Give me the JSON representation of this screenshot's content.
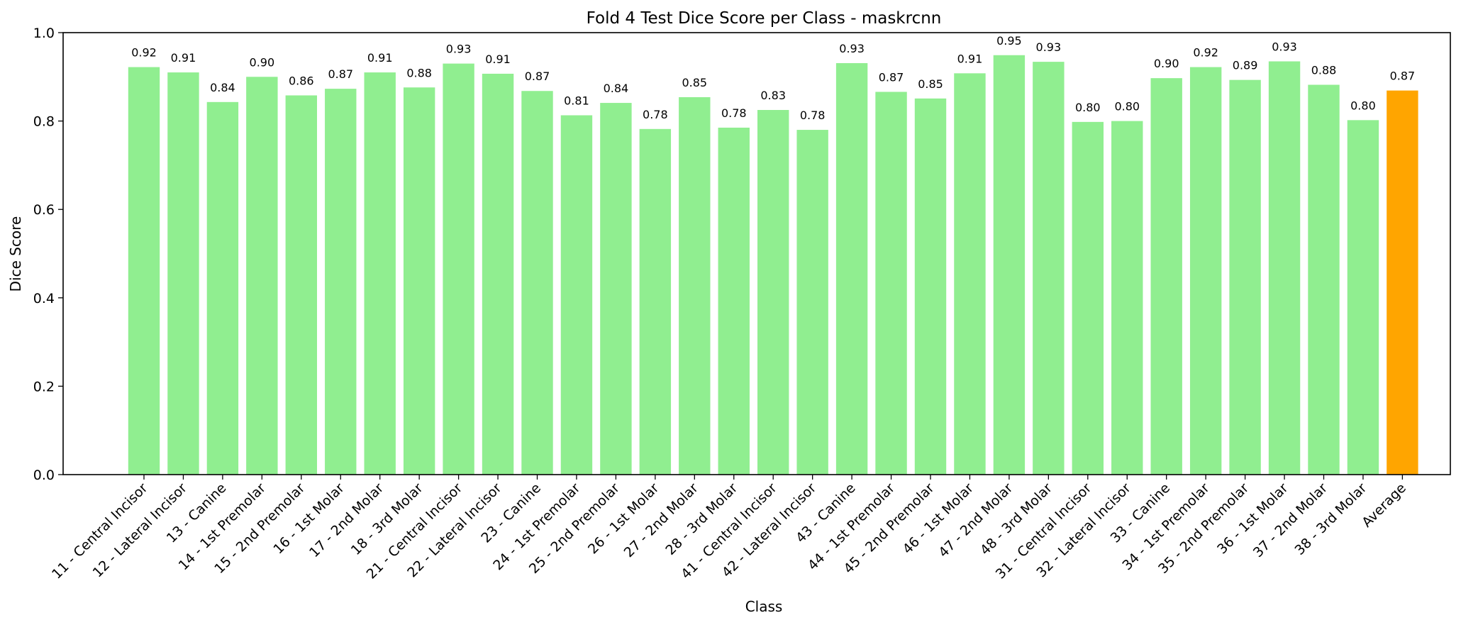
{
  "chart_data": {
    "type": "bar",
    "title": "Fold 4 Test Dice Score per Class - maskrcnn",
    "xlabel": "Class",
    "ylabel": "Dice Score",
    "ylim": [
      0,
      1.0
    ],
    "yticks": [
      "0.0",
      "0.2",
      "0.4",
      "0.6",
      "0.8",
      "1.0"
    ],
    "grid": false,
    "categories": [
      "11 - Central Incisor",
      "12 - Lateral Incisor",
      "13 - Canine",
      "14 - 1st Premolar",
      "15 - 2nd Premolar",
      "16 - 1st Molar",
      "17 - 2nd Molar",
      "18 - 3rd Molar",
      "21 - Central Incisor",
      "22 - Lateral Incisor",
      "23 - Canine",
      "24 - 1st Premolar",
      "25 - 2nd Premolar",
      "26 - 1st Molar",
      "27 - 2nd Molar",
      "28 - 3rd Molar",
      "41 - Central Incisor",
      "42 - Lateral Incisor",
      "43 - Canine",
      "44 - 1st Premolar",
      "45 - 2nd Premolar",
      "46 - 1st Molar",
      "47 - 2nd Molar",
      "48 - 3rd Molar",
      "31 - Central Incisor",
      "32 - Lateral Incisor",
      "33 - Canine",
      "34 - 1st Premolar",
      "35 - 2nd Premolar",
      "36 - 1st Molar",
      "37 - 2nd Molar",
      "38 - 3rd Molar",
      "Average"
    ],
    "values": [
      0.922,
      0.91,
      0.843,
      0.9,
      0.858,
      0.873,
      0.91,
      0.876,
      0.93,
      0.907,
      0.868,
      0.813,
      0.841,
      0.782,
      0.854,
      0.785,
      0.825,
      0.78,
      0.931,
      0.866,
      0.851,
      0.908,
      0.949,
      0.934,
      0.798,
      0.8,
      0.897,
      0.922,
      0.893,
      0.935,
      0.882,
      0.802,
      0.869
    ],
    "value_labels": [
      "0.92",
      "0.91",
      "0.84",
      "0.90",
      "0.86",
      "0.87",
      "0.91",
      "0.88",
      "0.93",
      "0.91",
      "0.87",
      "0.81",
      "0.84",
      "0.78",
      "0.85",
      "0.78",
      "0.83",
      "0.78",
      "0.93",
      "0.87",
      "0.85",
      "0.91",
      "0.95",
      "0.93",
      "0.80",
      "0.80",
      "0.90",
      "0.92",
      "0.89",
      "0.93",
      "0.88",
      "0.80",
      "0.87"
    ],
    "colors": {
      "bar": "#90ee90",
      "average": "#ffa500",
      "axis": "#000000"
    },
    "highlight_category": "Average"
  }
}
